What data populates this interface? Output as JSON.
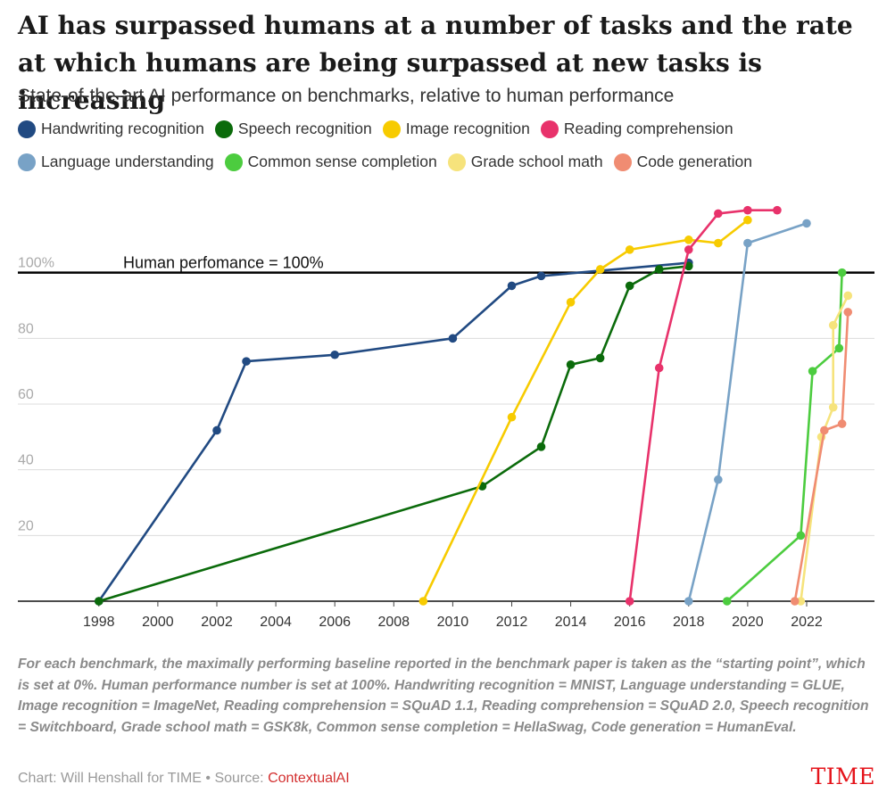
{
  "title": "AI has surpassed humans at a number of tasks and the rate at which humans are being surpassed at new tasks is increasing",
  "subtitle": "State-of-the-art AI performance on benchmarks, relative to human performance",
  "notes": "For each benchmark, the maximally performing baseline reported in the benchmark paper is taken as the “starting point”, which is set at 0%. Human performance number is set at 100%. Handwriting recognition = MNIST, Language understanding = GLUE, Image recognition = ImageNet, Reading comprehension = SQuAD 1.1, Reading comprehension = SQuAD 2.0, Speech recognition = Switchboard, Grade school math = GSK8k, Common sense completion = HellaSwag, Code generation = HumanEval.",
  "footer": {
    "credit": "Chart: Will Henshall for TIME • Source: ",
    "source": "ContextualAI",
    "brand": "TIME"
  },
  "chart_data": {
    "type": "line",
    "xlim": [
      1996.1,
      2024.3
    ],
    "ylim": [
      0,
      120
    ],
    "x_ticks": [
      1998,
      2000,
      2002,
      2004,
      2006,
      2008,
      2010,
      2012,
      2014,
      2016,
      2018,
      2020,
      2022
    ],
    "y_ticks": [
      {
        "value": 20,
        "label": "20"
      },
      {
        "value": 40,
        "label": "40"
      },
      {
        "value": 60,
        "label": "60"
      },
      {
        "value": 80,
        "label": "80"
      },
      {
        "value": 100,
        "label": "100%"
      }
    ],
    "reference_line": {
      "value": 100,
      "label": "Human perfomance = 100%"
    },
    "series": [
      {
        "name": "Handwriting recognition",
        "color": "#214a82",
        "points": [
          [
            1998,
            0
          ],
          [
            2002,
            52
          ],
          [
            2003,
            73
          ],
          [
            2006,
            75
          ],
          [
            2010,
            80
          ],
          [
            2012,
            96
          ],
          [
            2013,
            99
          ],
          [
            2018,
            103
          ]
        ]
      },
      {
        "name": "Speech recognition",
        "color": "#0b6b0b",
        "points": [
          [
            1998,
            0
          ],
          [
            2011,
            35
          ],
          [
            2013,
            47
          ],
          [
            2014,
            72
          ],
          [
            2015,
            74
          ],
          [
            2016,
            96
          ],
          [
            2017,
            101
          ],
          [
            2018,
            102
          ]
        ]
      },
      {
        "name": "Image recognition",
        "color": "#f7cb00",
        "points": [
          [
            2009,
            0
          ],
          [
            2012,
            56
          ],
          [
            2014,
            91
          ],
          [
            2015,
            101
          ],
          [
            2016,
            107
          ],
          [
            2018,
            110
          ],
          [
            2019,
            109
          ],
          [
            2020,
            116
          ]
        ]
      },
      {
        "name": "Reading comprehension",
        "color": "#e8326b",
        "points": [
          [
            2016,
            0
          ],
          [
            2017,
            71
          ],
          [
            2018,
            107
          ],
          [
            2019,
            118
          ],
          [
            2020,
            119
          ],
          [
            2021,
            119
          ]
        ]
      },
      {
        "name": "Language understanding",
        "color": "#78a2c6",
        "points": [
          [
            2018,
            0
          ],
          [
            2019,
            37
          ],
          [
            2020,
            109
          ],
          [
            2022,
            115
          ]
        ]
      },
      {
        "name": "Common sense completion",
        "color": "#4ccc3f",
        "points": [
          [
            2019.3,
            0
          ],
          [
            2021.8,
            20
          ],
          [
            2022.2,
            70
          ],
          [
            2023.1,
            77
          ],
          [
            2023.2,
            100
          ]
        ]
      },
      {
        "name": "Grade school math",
        "color": "#f6e37c",
        "points": [
          [
            2021.8,
            0
          ],
          [
            2022.5,
            50
          ],
          [
            2022.9,
            59
          ],
          [
            2022.9,
            84
          ],
          [
            2023.4,
            93
          ]
        ]
      },
      {
        "name": "Code generation",
        "color": "#f08c72",
        "points": [
          [
            2021.6,
            0
          ],
          [
            2022.6,
            52
          ],
          [
            2023.2,
            54
          ],
          [
            2023.4,
            88
          ]
        ]
      }
    ]
  }
}
